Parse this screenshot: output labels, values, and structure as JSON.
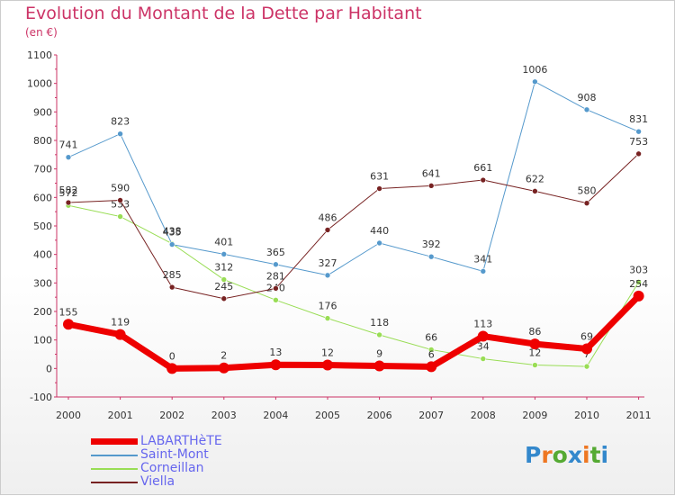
{
  "header": {
    "title": "Evolution du Montant de la Dette par Habitant",
    "subtitle": "(en €)"
  },
  "colors": {
    "title": "#cc3366",
    "axis_text": "#333333",
    "legend_text": "#6666ee"
  },
  "chart_data": {
    "type": "line",
    "title": "Evolution du Montant de la Dette par Habitant",
    "ylabel": "(en €)",
    "ylim": [
      -100,
      1100
    ],
    "yticks": [
      -100,
      0,
      100,
      200,
      300,
      400,
      500,
      600,
      700,
      800,
      900,
      1000,
      1100
    ],
    "categories": [
      "2000",
      "2001",
      "2002",
      "2003",
      "2004",
      "2005",
      "2006",
      "2007",
      "2008",
      "2009",
      "2010",
      "2011"
    ],
    "grid": false,
    "series": [
      {
        "name": "Corneillan",
        "color": "#99dd55",
        "width": 1,
        "values": [
          572,
          533,
          438,
          312,
          240,
          176,
          118,
          66,
          34,
          12,
          7,
          303
        ],
        "labels": [
          "572",
          "533",
          "438",
          "312",
          "240",
          "176",
          "118",
          "66",
          "34",
          "12",
          "7",
          "303"
        ]
      },
      {
        "name": "Saint-Mont",
        "color": "#5599cc",
        "width": 1,
        "values": [
          741,
          823,
          435,
          401,
          365,
          327,
          440,
          392,
          341,
          1006,
          908,
          831
        ],
        "labels": [
          "741",
          "823",
          "435",
          "401",
          "365",
          "327",
          "440",
          "392",
          "341",
          "1006",
          "908",
          "831"
        ]
      },
      {
        "name": "Viella",
        "color": "#772222",
        "width": 1,
        "values": [
          582,
          590,
          285,
          245,
          281,
          486,
          631,
          641,
          661,
          622,
          580,
          753
        ],
        "labels": [
          "582",
          "590",
          "285",
          "245",
          "281",
          "486",
          "631",
          "641",
          "661",
          "622",
          "580",
          "753"
        ]
      },
      {
        "name": "LABARTHèTE",
        "color": "#ee0000",
        "width": 7,
        "values": [
          155,
          119,
          0,
          2,
          13,
          12,
          9,
          6,
          113,
          86,
          69,
          254
        ],
        "labels": [
          "155",
          "119",
          "0",
          "2",
          "13",
          "12",
          "9",
          "6",
          "113",
          "86",
          "69",
          "254"
        ]
      }
    ],
    "legend": [
      "LABARTHèTE",
      "Saint-Mont",
      "Corneillan",
      "Viella"
    ]
  },
  "branding": {
    "logo_letters": [
      "P",
      "r",
      "o",
      "x",
      "i",
      "t",
      "i"
    ],
    "logo_colors": [
      "#3388cc",
      "#ee7722",
      "#55aa33",
      "#3388cc",
      "#ee7722",
      "#55aa33",
      "#3388cc"
    ]
  }
}
